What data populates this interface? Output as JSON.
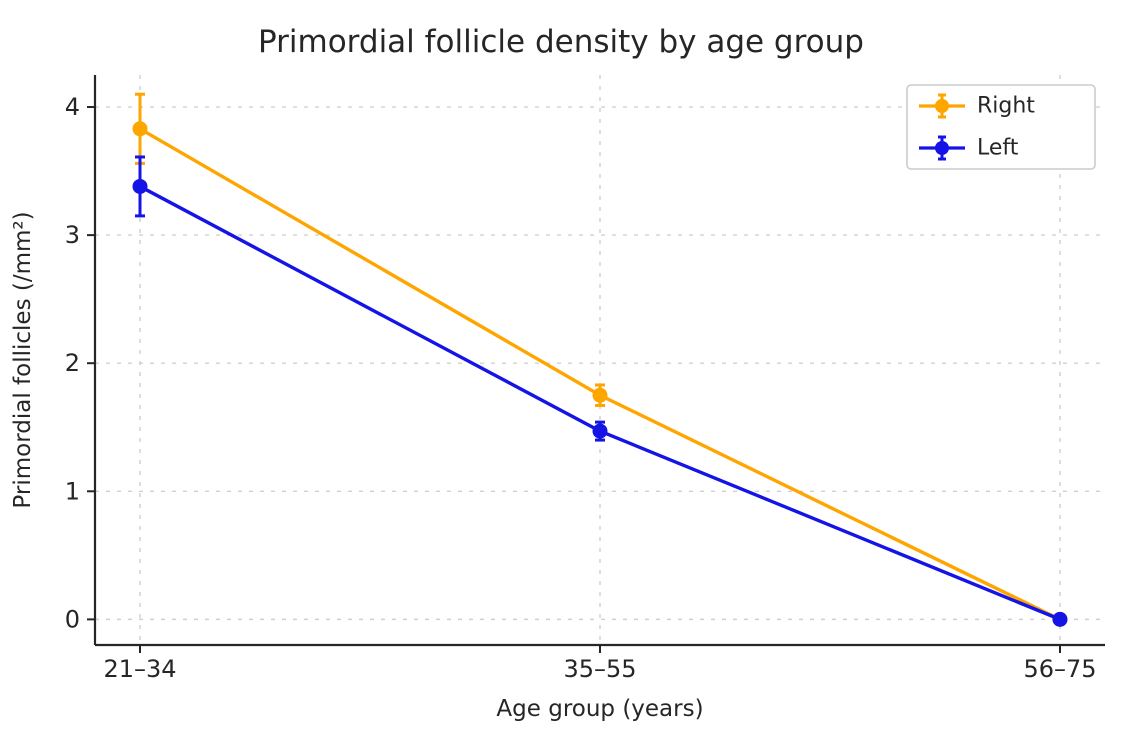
{
  "chart_data": {
    "type": "line",
    "title": "Primordial follicle density by age group",
    "xlabel": "Age group (years)",
    "ylabel": "Primordial follicles (/mm²)",
    "categories": [
      "21–34",
      "35–55",
      "56–75"
    ],
    "yticks": [
      0,
      1,
      2,
      3,
      4
    ],
    "ylim": [
      -0.2,
      4.25
    ],
    "grid": true,
    "grid_style": "dashed",
    "legend_position": "upper right",
    "series": [
      {
        "name": "Right",
        "color": "#FFA500",
        "values": [
          3.83,
          1.75,
          0.0
        ],
        "errors": [
          0.27,
          0.08,
          0.03
        ]
      },
      {
        "name": "Left",
        "color": "#1414E6",
        "values": [
          3.38,
          1.47,
          0.0
        ],
        "errors": [
          0.23,
          0.07,
          0.03
        ]
      }
    ],
    "colors": {
      "text": "#262626",
      "grid": "#d0d0d0",
      "spine": "#262626",
      "legend_border": "#cccccc",
      "background": "#ffffff"
    }
  }
}
